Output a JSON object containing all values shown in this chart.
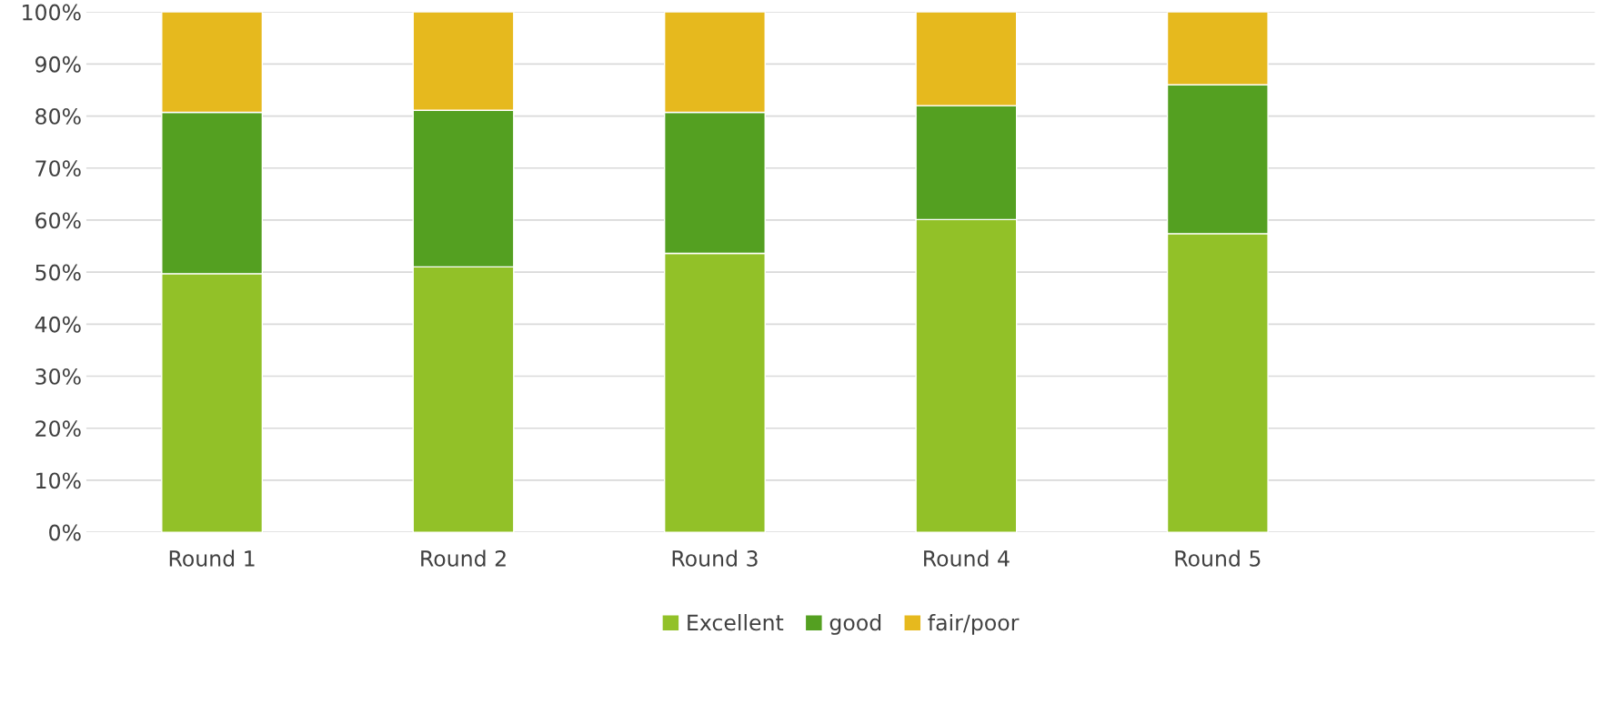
{
  "chart_data": {
    "type": "bar",
    "stacked": true,
    "categories": [
      "Round 1",
      "Round 2",
      "Round 3",
      "Round 4",
      "Round 5",
      null
    ],
    "series": [
      {
        "name": "Excellent",
        "color": "#92c128",
        "values": [
          49.7,
          51.0,
          53.6,
          60.1,
          57.4,
          null
        ]
      },
      {
        "name": "good",
        "color": "#54a021",
        "values": [
          31.0,
          30.1,
          27.1,
          21.9,
          28.6,
          null
        ]
      },
      {
        "name": "fair/poor",
        "color": "#e6b91e",
        "values": [
          19.3,
          18.9,
          19.3,
          18.0,
          14.0,
          null
        ]
      }
    ],
    "ylim": [
      0,
      100
    ],
    "yticks": [
      {
        "value": 0,
        "label": "0%"
      },
      {
        "value": 10,
        "label": "10%"
      },
      {
        "value": 20,
        "label": "20%"
      },
      {
        "value": 30,
        "label": "30%"
      },
      {
        "value": 40,
        "label": "40%"
      },
      {
        "value": 50,
        "label": "50%"
      },
      {
        "value": 60,
        "label": "60%"
      },
      {
        "value": 70,
        "label": "70%"
      },
      {
        "value": 80,
        "label": "80%"
      },
      {
        "value": 90,
        "label": "90%"
      },
      {
        "value": 100,
        "label": "100%"
      }
    ],
    "grid": "y",
    "legend": "bottom"
  }
}
